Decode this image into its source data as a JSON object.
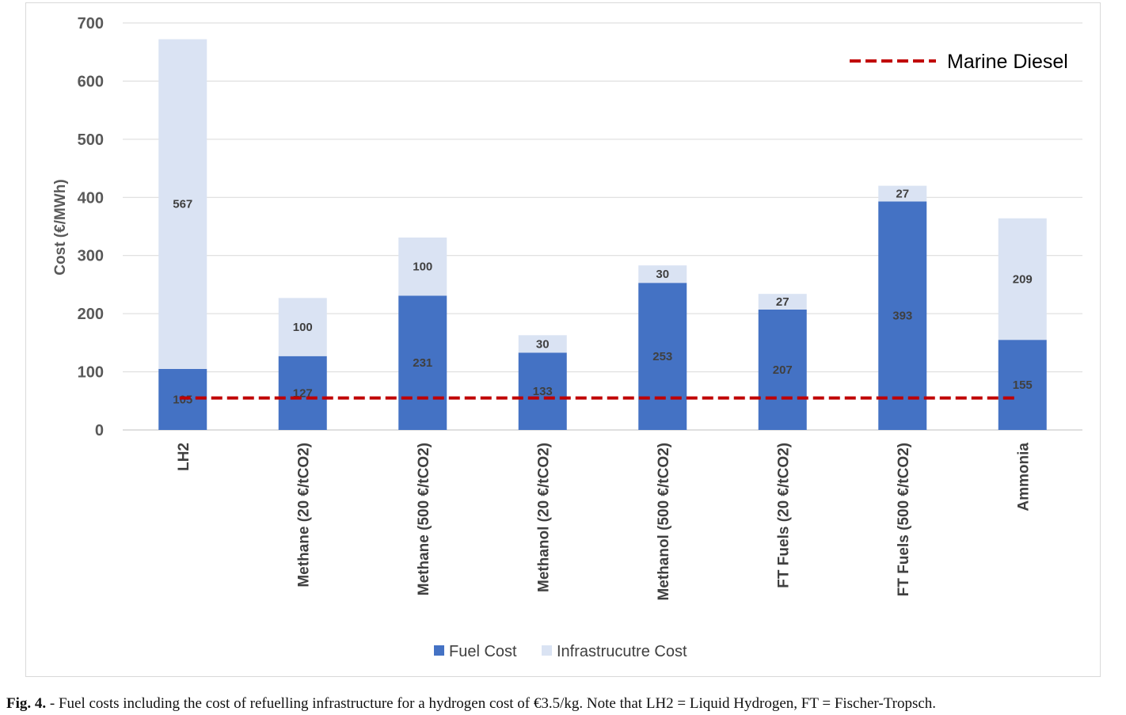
{
  "chart_data": {
    "type": "bar",
    "stacked": true,
    "categories": [
      "LH2",
      "Methane (20 €/tCO2)",
      "Methane (500 €/tCO2)",
      "Methanol (20 €/tCO2)",
      "Methanol (500 €/tCO2)",
      "FT Fuels (20 €/tCO2)",
      "FT Fuels (500 €/tCO2)",
      "Ammonia"
    ],
    "series": [
      {
        "name": "Fuel Cost",
        "color": "#4472c4",
        "values": [
          105,
          127,
          231,
          133,
          253,
          207,
          393,
          155
        ]
      },
      {
        "name": "Infrastrucutre Cost",
        "color": "#dae3f3",
        "values": [
          567,
          100,
          100,
          30,
          30,
          27,
          27,
          209
        ]
      }
    ],
    "reference_line": {
      "name": "Marine Diesel",
      "value": 55,
      "color": "#c00000",
      "style": "dashed"
    },
    "ylabel": "Cost (€/MWh)",
    "xlabel": "",
    "ylim": [
      0,
      700
    ],
    "yticks": [
      0,
      100,
      200,
      300,
      400,
      500,
      600,
      700
    ],
    "grid": "horizontal",
    "legend_position": "bottom",
    "reference_legend_position": "top-right"
  },
  "caption": {
    "label": "Fig. 4.",
    "text": " - Fuel costs including the cost of refuelling infrastructure for a hydrogen cost of €3.5/kg. Note that LH2 = Liquid Hydrogen, FT = Fischer-Tropsch."
  }
}
